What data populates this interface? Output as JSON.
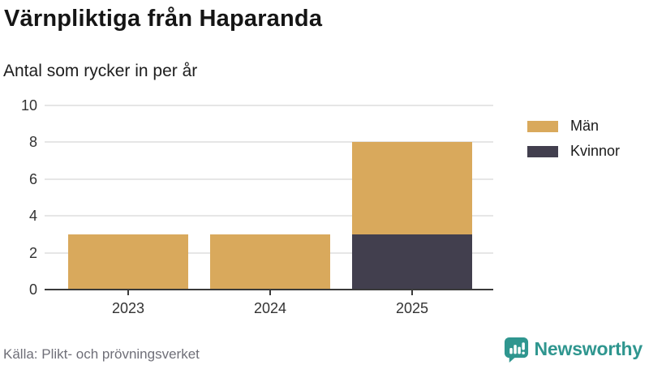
{
  "header": {
    "title": "Värnpliktiga från Haparanda",
    "subtitle": "Antal som rycker in per år"
  },
  "chart_data": {
    "type": "bar",
    "stacked": true,
    "title": "Värnpliktiga från Haparanda",
    "subtitle": "Antal som rycker in per år",
    "categories": [
      "2023",
      "2024",
      "2025"
    ],
    "series": [
      {
        "name": "Män",
        "color": "#d9a95c",
        "values": [
          3,
          3,
          5
        ]
      },
      {
        "name": "Kvinnor",
        "color": "#423f4e",
        "values": [
          0,
          0,
          3
        ]
      }
    ],
    "stack_bottom_to_top": [
      "Kvinnor",
      "Män"
    ],
    "xlabel": "",
    "ylabel": "",
    "ylim": [
      0,
      10
    ],
    "yticks": [
      0,
      2,
      4,
      6,
      8,
      10
    ],
    "grid": "horizontal",
    "grid_color": "#e6e6e6",
    "axis_color": "#3a3a3a",
    "legend_position": "right"
  },
  "footer": {
    "source": "Källa: Plikt- och prövningsverket",
    "brand": "Newsworthy",
    "brand_color": "#2f968f",
    "brand_icon": "bar-chart-speech-bubble-icon"
  }
}
